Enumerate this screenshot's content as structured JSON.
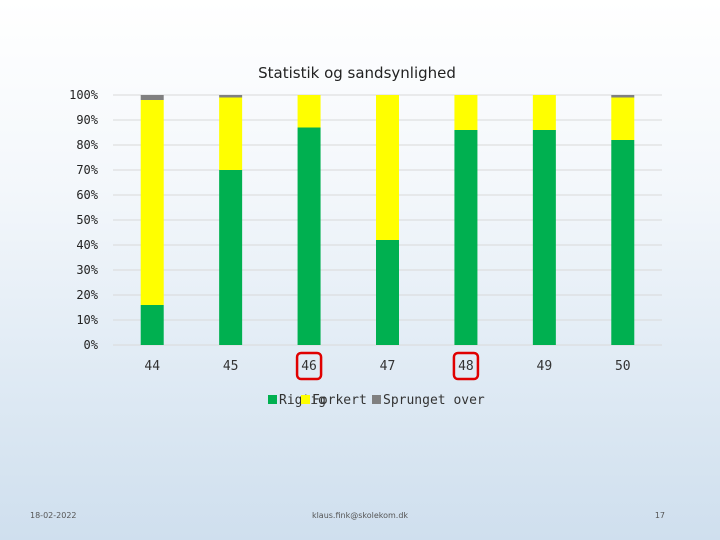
{
  "chart_data": {
    "type": "bar",
    "stacked": true,
    "title": "Statistik og sandsynlighed",
    "categories": [
      "44",
      "45",
      "46",
      "47",
      "48",
      "49",
      "50"
    ],
    "series": [
      {
        "name": "Rigtig",
        "color": "#00b050",
        "values": [
          16,
          70,
          87,
          42,
          86,
          86,
          82
        ]
      },
      {
        "name": "Forkert",
        "color": "#ffff00",
        "values": [
          82,
          29,
          13,
          58,
          14,
          14,
          17
        ]
      },
      {
        "name": "Sprunget over",
        "color": "#808080",
        "values": [
          2,
          1,
          0,
          0,
          0,
          0,
          1
        ]
      }
    ],
    "yticks": [
      "0%",
      "10%",
      "20%",
      "30%",
      "40%",
      "50%",
      "60%",
      "70%",
      "80%",
      "90%",
      "100%"
    ],
    "ylim": [
      0,
      100
    ],
    "grid": true,
    "legend": "bottom-center",
    "highlighted_categories": [
      "46",
      "48"
    ],
    "highlight_color": "#e00000"
  },
  "footer": {
    "date": "18-02-2022",
    "email": "klaus.fink@skolekom.dk",
    "page": "17"
  }
}
